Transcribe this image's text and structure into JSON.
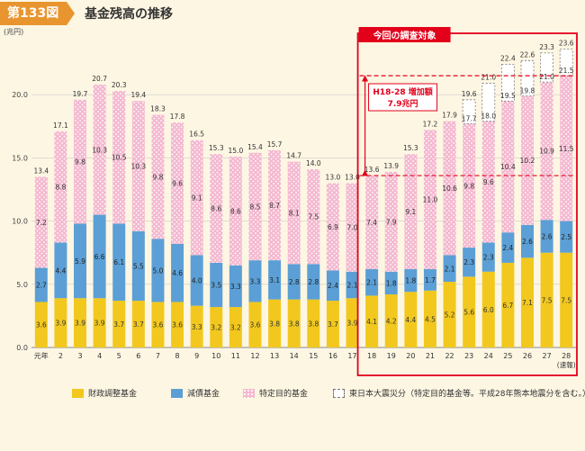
{
  "header": {
    "badge": "第133図",
    "title": "基金残高の推移"
  },
  "colors": {
    "fiscal": "#f2c81e",
    "debt": "#5b9fd6",
    "special": "#f4b8cf",
    "highlight": "#e3001b",
    "accent": "#e8952f"
  },
  "chart_data": {
    "type": "bar",
    "stacked": true,
    "title": "基金残高の推移",
    "ylabel": "(兆円)",
    "xlabel": "",
    "ylim": [
      0,
      25
    ],
    "yticks": [
      "0.0",
      "5.0",
      "10.0",
      "15.0",
      "20.0"
    ],
    "categories": [
      "元年",
      "2",
      "3",
      "4",
      "5",
      "6",
      "7",
      "8",
      "9",
      "10",
      "11",
      "12",
      "13",
      "14",
      "15",
      "16",
      "17",
      "18",
      "19",
      "20",
      "21",
      "22",
      "23",
      "24",
      "25",
      "26",
      "27",
      "28"
    ],
    "x_sublabel": "(速報)",
    "series": [
      {
        "name": "財政調整基金",
        "values": [
          3.6,
          3.9,
          3.9,
          3.9,
          3.7,
          3.7,
          3.6,
          3.6,
          3.3,
          3.2,
          3.2,
          3.6,
          3.8,
          3.8,
          3.8,
          3.7,
          3.9,
          4.1,
          4.2,
          4.4,
          4.5,
          5.2,
          5.6,
          6.0,
          6.7,
          7.1,
          7.5,
          7.5
        ]
      },
      {
        "name": "減債基金",
        "values": [
          2.7,
          4.4,
          5.9,
          6.6,
          6.1,
          5.5,
          5.0,
          4.6,
          4.0,
          3.5,
          3.3,
          3.3,
          3.1,
          2.8,
          2.8,
          2.4,
          2.1,
          2.1,
          1.8,
          1.8,
          1.7,
          2.1,
          2.3,
          2.3,
          2.4,
          2.6,
          2.6,
          2.5
        ]
      },
      {
        "name": "特定目的基金",
        "values": [
          7.2,
          8.8,
          9.8,
          10.3,
          10.5,
          10.3,
          9.8,
          9.6,
          9.1,
          8.6,
          8.6,
          8.5,
          8.7,
          8.1,
          7.5,
          6.9,
          7.0,
          7.4,
          7.9,
          9.1,
          11.0,
          10.6,
          9.8,
          9.6,
          10.4,
          10.2,
          10.9,
          11.5
        ]
      },
      {
        "name": "東日本大震災分",
        "values": [
          0,
          0,
          0,
          0,
          0,
          0,
          0,
          0,
          0,
          0,
          0,
          0,
          0,
          0,
          0,
          0,
          0,
          0,
          0,
          0,
          0,
          0,
          1.9,
          3.0,
          2.9,
          2.8,
          2.3,
          2.1
        ]
      }
    ],
    "totals": [
      "13.4",
      "17.1",
      "19.7",
      "20.7",
      "20.3",
      "19.4",
      "18.3",
      "17.8",
      "16.5",
      "15.3",
      "15.0",
      "15.4",
      "15.7",
      "14.7",
      "14.0",
      "13.0",
      "13.0",
      "13.6",
      "13.9",
      "15.3",
      "17.2",
      "17.9",
      "19.6",
      "21.0",
      "22.4",
      "22.6",
      "23.3",
      "23.6"
    ],
    "subtotals_excl_quake": [
      "",
      "",
      "",
      "",
      "",
      "",
      "",
      "",
      "",
      "",
      "",
      "",
      "",
      "",
      "",
      "",
      "",
      "",
      "",
      "",
      "",
      "",
      "17.7",
      "18.0",
      "19.5",
      "19.8",
      "21.0",
      "21.5"
    ],
    "legend": [
      "財政調整基金",
      "減債基金",
      "特定目的基金",
      "東日本大震災分（特定目的基金等。平成28年熊本地震分を含む。）"
    ],
    "annotations": {
      "scope_label": "今回の調査対象",
      "increase_label": "H18-28 増加額",
      "increase_value": "7.9兆円"
    }
  }
}
